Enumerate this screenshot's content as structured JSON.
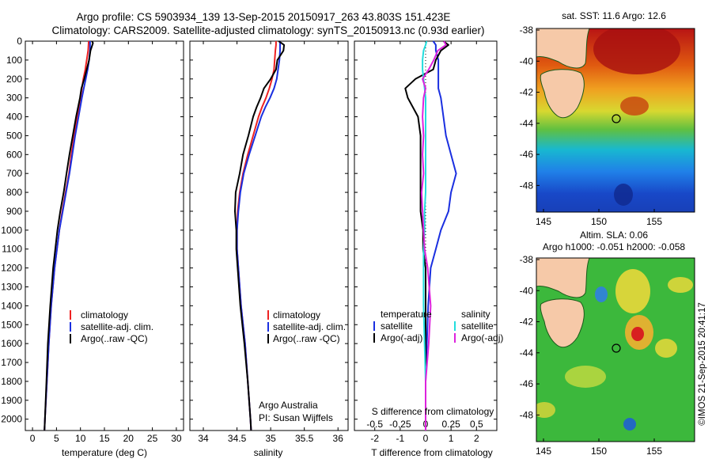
{
  "header": {
    "line1": "Argo profile: CS 5903934_139 13-Sep-2015 20150917_263 43.803S 151.423E",
    "line2": "Climatology: CARS2009. Satellite-adjusted climatology: synTS_20150913.nc (0.93d earlier)"
  },
  "colors": {
    "climatology": "#ee2222",
    "satellite": "#1a2fe0",
    "argo": "#000000",
    "sat_salinity": "#22dddd",
    "argo_salinity": "#dd22dd",
    "land": "#f6c9a8"
  },
  "depth_axis": {
    "ticks": [
      0,
      100,
      200,
      300,
      400,
      500,
      600,
      700,
      800,
      900,
      1000,
      1100,
      1200,
      1300,
      1400,
      1500,
      1600,
      1700,
      1800,
      1900,
      2000
    ],
    "range": [
      0,
      2060
    ]
  },
  "chart_data": [
    {
      "type": "line",
      "id": "temperature",
      "xlabel": "temperature (deg C)",
      "xlim": [
        -1.5,
        31.5
      ],
      "xticks": [
        0,
        5,
        10,
        15,
        20,
        25,
        30
      ],
      "depth": [
        0,
        10,
        50,
        100,
        150,
        200,
        250,
        300,
        400,
        500,
        600,
        700,
        800,
        900,
        1000,
        1200,
        1400,
        1600,
        1800,
        2000,
        2060
      ],
      "series": [
        {
          "name": "climatology",
          "color": "#ee2222",
          "values": [
            11.7,
            11.7,
            11.6,
            11.3,
            11.0,
            10.6,
            10.3,
            10.0,
            9.3,
            8.7,
            8.1,
            7.6,
            6.9,
            6.2,
            5.6,
            4.6,
            3.9,
            3.4,
            3.0,
            2.6,
            2.5
          ]
        },
        {
          "name": "satellite-adj. clim.",
          "color": "#1a2fe0",
          "values": [
            12.0,
            12.0,
            12.0,
            11.8,
            11.5,
            11.1,
            10.7,
            10.3,
            9.6,
            8.9,
            8.3,
            7.7,
            7.0,
            6.3,
            5.6,
            4.6,
            3.9,
            3.4,
            3.0,
            2.6,
            2.5
          ]
        },
        {
          "name": "Argo(..raw -QC)",
          "color": "#000000",
          "values": [
            12.4,
            12.6,
            12.1,
            11.8,
            11.3,
            10.8,
            10.2,
            9.9,
            9.1,
            8.4,
            7.7,
            7.1,
            6.5,
            5.8,
            5.2,
            4.3,
            3.7,
            3.2,
            2.9,
            2.6,
            2.5
          ]
        }
      ],
      "legend": {
        "position": "lower-right",
        "items": [
          "climatology",
          "satellite-adj. clim.",
          "Argo(..raw -QC)"
        ]
      }
    },
    {
      "type": "line",
      "id": "salinity",
      "xlabel": "salinity",
      "xlim": [
        33.8,
        36.15
      ],
      "xticks": [
        34,
        34.5,
        35,
        35.5,
        36
      ],
      "xticklabels": [
        "34",
        "34.5",
        "35",
        "35.5",
        "36"
      ],
      "depth": [
        0,
        20,
        50,
        100,
        150,
        200,
        250,
        300,
        350,
        400,
        500,
        600,
        700,
        800,
        900,
        1000,
        1100,
        1200,
        1400,
        1600,
        1800,
        2000,
        2060
      ],
      "series": [
        {
          "name": "climatology",
          "color": "#ee2222",
          "values": [
            35.08,
            35.08,
            35.07,
            35.06,
            35.05,
            35.02,
            34.98,
            34.93,
            34.87,
            34.82,
            34.74,
            34.66,
            34.59,
            34.54,
            34.51,
            34.5,
            34.5,
            34.52,
            34.56,
            34.62,
            34.66,
            34.7,
            34.71
          ]
        },
        {
          "name": "satellite-adj. clim.",
          "color": "#1a2fe0",
          "values": [
            35.14,
            35.14,
            35.14,
            35.13,
            35.11,
            35.09,
            35.05,
            34.99,
            34.92,
            34.86,
            34.77,
            34.68,
            34.6,
            34.55,
            34.52,
            34.5,
            34.5,
            34.52,
            34.56,
            34.62,
            34.66,
            34.7,
            34.71
          ]
        },
        {
          "name": "Argo(..raw -QC)",
          "color": "#000000",
          "values": [
            35.12,
            35.2,
            35.19,
            35.1,
            35.08,
            35.0,
            34.9,
            34.85,
            34.79,
            34.74,
            34.67,
            34.59,
            34.54,
            34.48,
            34.47,
            34.49,
            34.49,
            34.51,
            34.55,
            34.61,
            34.66,
            34.7,
            34.71
          ]
        }
      ],
      "legend": {
        "position": "lower-right",
        "items": [
          "climatology",
          "satellite-adj. clim.",
          "Argo(..raw -QC)"
        ]
      },
      "annotation": [
        "Argo Australia",
        "PI: Susan Wijffels"
      ]
    },
    {
      "type": "line",
      "id": "difference",
      "xlabel": "T difference from climatology",
      "xlim": [
        -2.8,
        2.8
      ],
      "xticks": [
        -2,
        -1,
        0,
        1,
        2
      ],
      "top_axis_label": "S difference from climatology",
      "top_ticks": [
        -0.5,
        -0.25,
        0,
        0.25,
        0.5
      ],
      "top_ticklabels": [
        "-0.5",
        "-0.25",
        "0",
        "0.25",
        "0.5"
      ],
      "depth": [
        0,
        20,
        50,
        100,
        150,
        200,
        250,
        300,
        400,
        500,
        600,
        700,
        800,
        900,
        1000,
        1100,
        1200,
        1400,
        1600,
        1800,
        2000,
        2060
      ],
      "series": [
        {
          "name": "temperature satellite",
          "color": "#1a2fe0",
          "values": [
            0.3,
            0.4,
            0.4,
            0.5,
            0.5,
            0.5,
            0.5,
            0.6,
            0.7,
            0.8,
            1.0,
            1.2,
            1.0,
            0.9,
            0.6,
            0.4,
            0.2,
            0.1,
            0.05,
            0.0,
            0.0,
            0.0
          ]
        },
        {
          "name": "temperature Argo(-adj)",
          "color": "#000000",
          "values": [
            0.7,
            0.9,
            0.6,
            0.4,
            0.3,
            -0.4,
            -0.8,
            -0.7,
            -0.3,
            -0.2,
            -0.2,
            -0.2,
            -0.2,
            -0.2,
            -0.1,
            -0.1,
            0.0,
            0.0,
            0.0,
            0.0,
            0.0,
            0.0
          ]
        },
        {
          "name": "salinity satellite",
          "color": "#22dddd",
          "values": [
            0.01,
            0.0,
            -0.02,
            -0.03,
            -0.03,
            -0.02,
            -0.01,
            0.0,
            0.0,
            0.0,
            0.0,
            0.0,
            0.0,
            -0.01,
            -0.01,
            -0.02,
            -0.02,
            -0.02,
            -0.01,
            0.0,
            0.0,
            0.0
          ]
        },
        {
          "name": "salinity Argo(-adj)",
          "color": "#dd22dd",
          "values": [
            0.18,
            0.2,
            0.12,
            0.08,
            0.03,
            -0.03,
            0.0,
            -0.02,
            -0.03,
            -0.02,
            -0.03,
            -0.02,
            -0.04,
            -0.03,
            -0.02,
            -0.01,
            0.02,
            0.05,
            0.03,
            0.0,
            0.0,
            0.0
          ]
        }
      ],
      "legend": {
        "temperature_heading": "temperature",
        "salinity_heading": "salinity",
        "items": [
          "satellite",
          "Argo(-adj)",
          "satellite",
          "Argo(-adj)"
        ]
      }
    }
  ],
  "maps": {
    "lat_ticks": [
      "-38",
      "-40",
      "-42",
      "-44",
      "-46",
      "-48"
    ],
    "lon_ticks": [
      "145",
      "150",
      "155"
    ],
    "sst": {
      "title": "sat. SST: 11.6 Argo: 12.6"
    },
    "sla": {
      "title_line1": "Altim. SLA: 0.06",
      "title_line2": "Argo h1000: -0.051 h2000: -0.058"
    },
    "float_position": {
      "lat": -43.803,
      "lon": 151.423
    }
  },
  "credit": "©IMOS 21-Sep-2015 20:41:17"
}
